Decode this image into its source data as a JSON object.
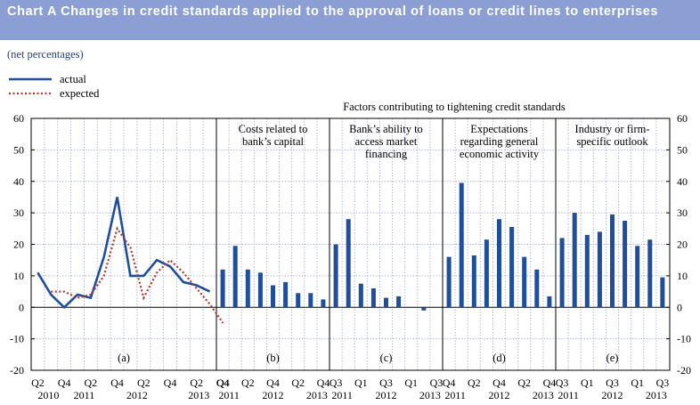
{
  "header": {
    "title": "Chart A Changes in credit standards applied to the approval of loans or credit lines to enterprises",
    "subtitle": "(net percentages)"
  },
  "chart_data": {
    "type": "line+bar",
    "supertitle": "Factors contributing to tightening credit standards",
    "legend": {
      "position": "top-left",
      "entries": [
        "actual",
        "expected"
      ]
    },
    "ylim": [
      -20,
      60
    ],
    "yticks": [
      "60",
      "50",
      "40",
      "30",
      "20",
      "10",
      "0",
      "-10",
      "-20"
    ],
    "colors": {
      "actual": "#1f4e9c",
      "expected": "#b5362a",
      "bar": "#1f4e9c",
      "grid": "#9da9d4"
    },
    "panels": [
      {
        "label": "(a)",
        "title": "",
        "type": "line",
        "quarter_labels": [
          "Q2",
          "Q4",
          "Q2",
          "Q4",
          "Q2",
          "Q4",
          "Q2",
          "Q4"
        ],
        "year_labels": [
          "2010",
          "2011",
          "2012",
          "2013"
        ],
        "series": [
          {
            "name": "actual",
            "style": "solid",
            "x": [
              "2010Q2",
              "2010Q3",
              "2010Q4",
              "2011Q1",
              "2011Q2",
              "2011Q3",
              "2011Q4",
              "2012Q1",
              "2012Q2",
              "2012Q3",
              "2012Q4",
              "2013Q1",
              "2013Q2",
              "2013Q3"
            ],
            "values": [
              11,
              4,
              0,
              4,
              3,
              16,
              35,
              10,
              10,
              15,
              13,
              8,
              7,
              5
            ]
          },
          {
            "name": "expected",
            "style": "dotted",
            "x": [
              "2010Q3",
              "2010Q4",
              "2011Q1",
              "2011Q2",
              "2011Q3",
              "2011Q4",
              "2012Q1",
              "2012Q2",
              "2012Q3",
              "2012Q4",
              "2013Q1",
              "2013Q2",
              "2013Q3",
              "2013Q4"
            ],
            "values": [
              5,
              5,
              3,
              4,
              10,
              25,
              19,
              3,
              11,
              15,
              11,
              6,
              1,
              -5
            ]
          }
        ]
      },
      {
        "label": "(b)",
        "title": "Costs related to bank’s capital",
        "type": "bar",
        "quarter_labels": [
          "Q4",
          "Q2",
          "Q4",
          "Q2",
          "Q4"
        ],
        "year_labels": [
          "2011",
          "2012",
          "2013"
        ],
        "values": [
          12,
          19.5,
          12,
          11,
          7,
          8,
          4.5,
          4.5,
          2.5
        ]
      },
      {
        "label": "(c)",
        "title": "Bank’s ability to access market financing",
        "type": "bar",
        "quarter_labels": [
          "Q3",
          "Q1",
          "Q3",
          "Q1",
          "Q3"
        ],
        "year_labels": [
          "2011",
          "2012",
          "2013"
        ],
        "values": [
          20,
          28,
          7.5,
          6,
          3,
          3.5,
          0,
          -1,
          0
        ]
      },
      {
        "label": "(d)",
        "title": "Expectations regarding general economic activity",
        "type": "bar",
        "quarter_labels": [
          "Q4",
          "Q2",
          "Q4",
          "Q2",
          "Q4"
        ],
        "year_labels": [
          "2011",
          "2012",
          "2013"
        ],
        "values": [
          16,
          39.5,
          16.5,
          21.5,
          28,
          25.5,
          16,
          12,
          3.5
        ]
      },
      {
        "label": "(e)",
        "title": "Industry or firm-specific outlook",
        "type": "bar",
        "quarter_labels": [
          "Q3",
          "Q1",
          "Q3",
          "Q1",
          "Q3"
        ],
        "year_labels": [
          "2011",
          "2012",
          "2013"
        ],
        "values": [
          22,
          30,
          23,
          24,
          29.5,
          27.5,
          19.5,
          21.5,
          9.5
        ]
      }
    ]
  }
}
